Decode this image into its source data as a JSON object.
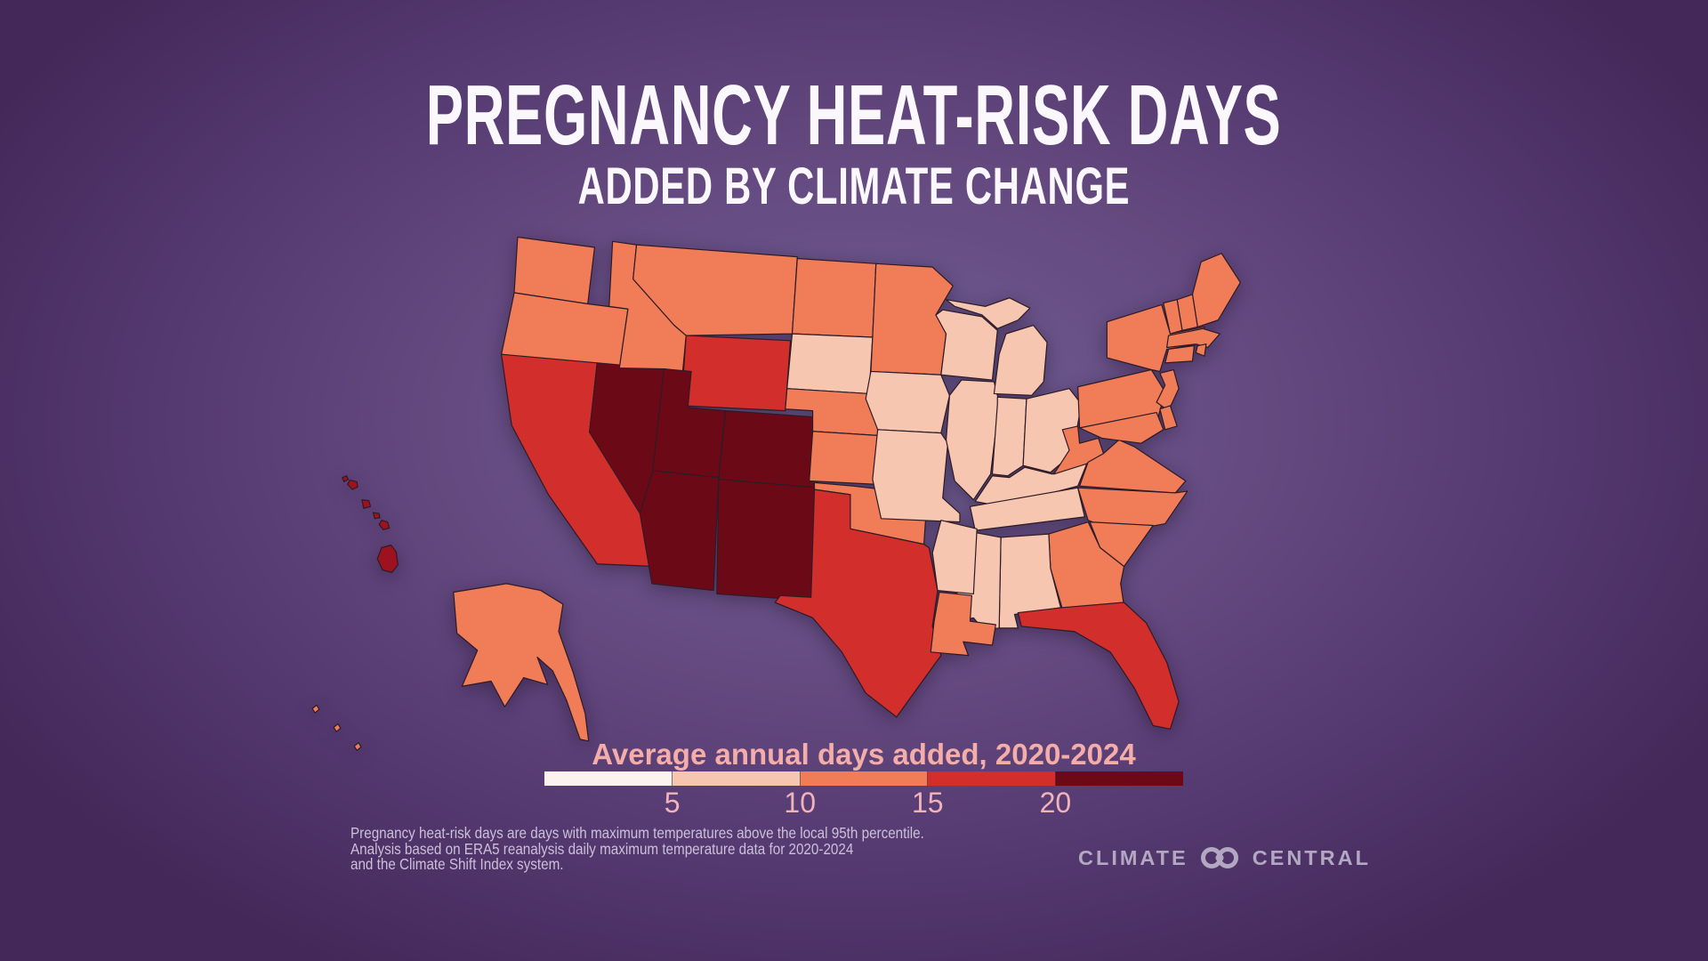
{
  "title": {
    "line1": "PREGNANCY HEAT-RISK DAYS",
    "line2": "ADDED BY CLIMATE CHANGE",
    "color": "#faf8fc"
  },
  "legend": {
    "title": "Average annual days added, 2020-2024",
    "title_color": "#f4ada8",
    "tick_color": "#f1b3ba",
    "ticks": [
      "5",
      "10",
      "15",
      "20"
    ],
    "bins": [
      {
        "range": "<5",
        "color": "#fdf3ee"
      },
      {
        "range": "5-10",
        "color": "#f7c6b0"
      },
      {
        "range": "10-15",
        "color": "#f07d58"
      },
      {
        "range": "15-20",
        "color": "#d22e2b"
      },
      {
        "range": "20+",
        "color": "#6b0a16"
      }
    ]
  },
  "footnote": {
    "color": "#ccc0d9",
    "lines": [
      "Pregnancy heat-risk days are days with maximum temperatures above the local 95th percentile.",
      "Analysis based on ERA5 reanalysis daily maximum temperature data for 2020-2024",
      "and the Climate Shift Index system."
    ]
  },
  "logo": {
    "word1": "CLIMATE",
    "word2": "CENTRAL",
    "color": "#b3a8c2",
    "icon": "interlocking-rings-icon"
  },
  "chart_data": {
    "type": "choropleth",
    "region": "United States",
    "title": "Pregnancy Heat-Risk Days Added by Climate Change",
    "metric": "Average annual pregnancy heat-risk days added, 2020-2024",
    "legend_bins": [
      "<5",
      "5-10",
      "10-15",
      "15-20",
      "20+"
    ],
    "states": [
      {
        "abbr": "WA",
        "name": "Washington",
        "value": "10-15"
      },
      {
        "abbr": "OR",
        "name": "Oregon",
        "value": "10-15"
      },
      {
        "abbr": "CA",
        "name": "California",
        "value": "15-20"
      },
      {
        "abbr": "NV",
        "name": "Nevada",
        "value": "20+"
      },
      {
        "abbr": "ID",
        "name": "Idaho",
        "value": "10-15"
      },
      {
        "abbr": "MT",
        "name": "Montana",
        "value": "10-15"
      },
      {
        "abbr": "WY",
        "name": "Wyoming",
        "value": "15-20"
      },
      {
        "abbr": "UT",
        "name": "Utah",
        "value": "20+"
      },
      {
        "abbr": "CO",
        "name": "Colorado",
        "value": "20+"
      },
      {
        "abbr": "AZ",
        "name": "Arizona",
        "value": "20+"
      },
      {
        "abbr": "NM",
        "name": "New Mexico",
        "value": "20+"
      },
      {
        "abbr": "ND",
        "name": "North Dakota",
        "value": "10-15"
      },
      {
        "abbr": "SD",
        "name": "South Dakota",
        "value": "5-10"
      },
      {
        "abbr": "NE",
        "name": "Nebraska",
        "value": "10-15"
      },
      {
        "abbr": "KS",
        "name": "Kansas",
        "value": "10-15"
      },
      {
        "abbr": "OK",
        "name": "Oklahoma",
        "value": "10-15"
      },
      {
        "abbr": "TX",
        "name": "Texas",
        "value": "15-20"
      },
      {
        "abbr": "MN",
        "name": "Minnesota",
        "value": "10-15"
      },
      {
        "abbr": "IA",
        "name": "Iowa",
        "value": "5-10"
      },
      {
        "abbr": "MO",
        "name": "Missouri",
        "value": "5-10"
      },
      {
        "abbr": "WI",
        "name": "Wisconsin",
        "value": "5-10"
      },
      {
        "abbr": "IL",
        "name": "Illinois",
        "value": "5-10"
      },
      {
        "abbr": "MI",
        "name": "Michigan",
        "value": "5-10"
      },
      {
        "abbr": "IN",
        "name": "Indiana",
        "value": "5-10"
      },
      {
        "abbr": "OH",
        "name": "Ohio",
        "value": "5-10"
      },
      {
        "abbr": "KY",
        "name": "Kentucky",
        "value": "5-10"
      },
      {
        "abbr": "TN",
        "name": "Tennessee",
        "value": "5-10"
      },
      {
        "abbr": "WV",
        "name": "West Virginia",
        "value": "10-15"
      },
      {
        "abbr": "VA",
        "name": "Virginia",
        "value": "10-15"
      },
      {
        "abbr": "PA",
        "name": "Pennsylvania",
        "value": "10-15"
      },
      {
        "abbr": "NY",
        "name": "New York",
        "value": "10-15"
      },
      {
        "abbr": "NJ",
        "name": "New Jersey",
        "value": "10-15"
      },
      {
        "abbr": "MD",
        "name": "Maryland",
        "value": "10-15"
      },
      {
        "abbr": "DE",
        "name": "Delaware",
        "value": "10-15"
      },
      {
        "abbr": "ME",
        "name": "Maine",
        "value": "10-15"
      },
      {
        "abbr": "NH",
        "name": "New Hampshire",
        "value": "10-15"
      },
      {
        "abbr": "VT",
        "name": "Vermont",
        "value": "10-15"
      },
      {
        "abbr": "MA",
        "name": "Massachusetts",
        "value": "10-15"
      },
      {
        "abbr": "RI",
        "name": "Rhode Island",
        "value": "10-15"
      },
      {
        "abbr": "CT",
        "name": "Connecticut",
        "value": "10-15"
      },
      {
        "abbr": "NC",
        "name": "North Carolina",
        "value": "10-15"
      },
      {
        "abbr": "SC",
        "name": "South Carolina",
        "value": "10-15"
      },
      {
        "abbr": "GA",
        "name": "Georgia",
        "value": "10-15"
      },
      {
        "abbr": "AL",
        "name": "Alabama",
        "value": "5-10"
      },
      {
        "abbr": "MS",
        "name": "Mississippi",
        "value": "5-10"
      },
      {
        "abbr": "AR",
        "name": "Arkansas",
        "value": "5-10"
      },
      {
        "abbr": "LA",
        "name": "Louisiana",
        "value": "10-15"
      },
      {
        "abbr": "FL",
        "name": "Florida",
        "value": "15-20"
      },
      {
        "abbr": "AK",
        "name": "Alaska",
        "value": "10-15"
      },
      {
        "abbr": "HI",
        "name": "Hawaii",
        "value": "20+",
        "display_color": "#9e1220"
      }
    ]
  }
}
